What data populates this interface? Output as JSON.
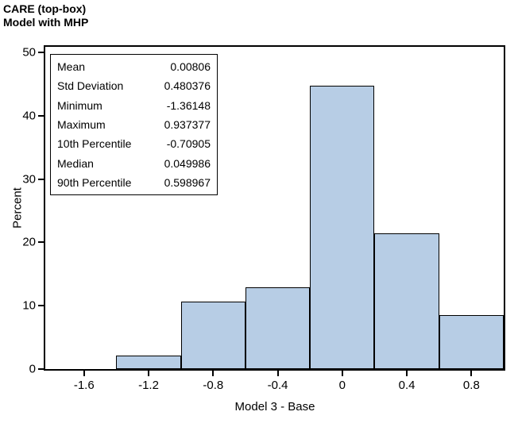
{
  "title": {
    "line1": "CARE (top-box)",
    "line2": "Model with MHP"
  },
  "axes": {
    "x_label": "Model 3 - Base",
    "y_label": "Percent"
  },
  "stats_box": {
    "rows": [
      {
        "label": "Mean",
        "value": "0.00806"
      },
      {
        "label": "Std Deviation",
        "value": "0.480376"
      },
      {
        "label": "Minimum",
        "value": "-1.36148"
      },
      {
        "label": "Maximum",
        "value": "0.937377"
      },
      {
        "label": "10th Percentile",
        "value": "-0.70905"
      },
      {
        "label": "Median",
        "value": "0.049986"
      },
      {
        "label": "90th Percentile",
        "value": "0.598967"
      }
    ]
  },
  "chart_data": {
    "type": "bar",
    "subtype": "histogram",
    "title": "CARE (top-box)",
    "subtitle": "Model with MHP",
    "xlabel": "Model 3 - Base",
    "ylabel": "Percent",
    "bin_centers": [
      -1.2,
      -0.8,
      -0.4,
      0,
      0.4,
      0.8
    ],
    "bin_width": 0.4,
    "values": [
      2.1,
      10.7,
      12.9,
      44.7,
      21.4,
      8.5
    ],
    "x_ticks": [
      -1.6,
      -1.2,
      -0.8,
      -0.4,
      0,
      0.4,
      0.8
    ],
    "x_tick_labels": [
      "-1.6",
      "-1.2",
      "-0.8",
      "-0.4",
      "0",
      "0.4",
      "0.8"
    ],
    "y_ticks": [
      0,
      10,
      20,
      30,
      40,
      50
    ],
    "y_tick_labels": [
      "0",
      "10",
      "20",
      "30",
      "40",
      "50"
    ],
    "xlim": [
      -1.84,
      1.0
    ],
    "ylim": [
      0,
      50.9
    ],
    "grid": false,
    "legend": false,
    "bar_fill": "#b7cde5",
    "bar_border": "#000000",
    "axis_color": "#000000"
  }
}
